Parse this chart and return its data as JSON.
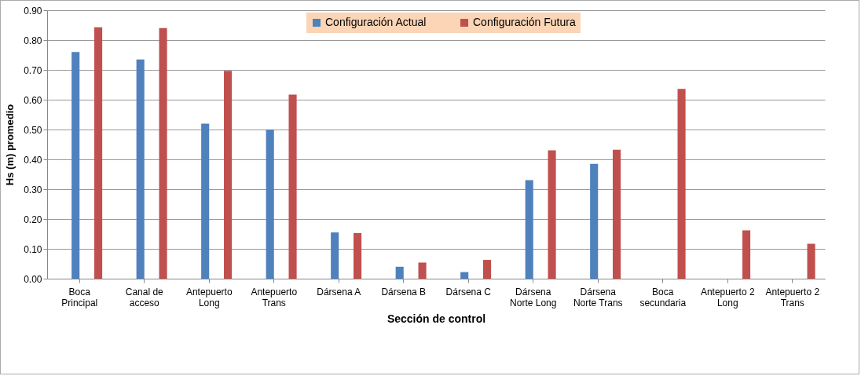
{
  "chart_data": {
    "type": "bar",
    "xlabel": "Sección de control",
    "ylabel": "Hs (m) promedio",
    "categories": [
      "Boca Principal",
      "Canal de acceso",
      "Antepuerto Long",
      "Antepuerto Trans",
      "Dársena A",
      "Dársena B",
      "Dársena C",
      "Dársena Norte Long",
      "Dársena Norte Trans",
      "Boca secundaria",
      "Antepuerto 2 Long",
      "Antepuerto 2 Trans"
    ],
    "series": [
      {
        "name": "Configuración Actual",
        "color": "#4f81bd",
        "values": [
          0.76,
          0.735,
          0.52,
          0.5,
          0.155,
          0.04,
          0.022,
          0.33,
          0.385,
          null,
          null,
          null
        ]
      },
      {
        "name": "Configuración Futura",
        "color": "#c0504d",
        "values": [
          0.843,
          0.84,
          0.697,
          0.617,
          0.153,
          0.054,
          0.063,
          0.43,
          0.432,
          0.636,
          0.162,
          0.117
        ]
      }
    ],
    "ylim": [
      0,
      0.9
    ],
    "yticks": [
      {
        "value": 0,
        "label": "0.00"
      },
      {
        "value": 0.1,
        "label": "0.10"
      },
      {
        "value": 0.2,
        "label": "0.20"
      },
      {
        "value": 0.3,
        "label": "0.30"
      },
      {
        "value": 0.4,
        "label": "0.40"
      },
      {
        "value": 0.5,
        "label": "0.50"
      },
      {
        "value": 0.6,
        "label": "0.60"
      },
      {
        "value": 0.7,
        "label": "0.70"
      },
      {
        "value": 0.8,
        "label": "0.80"
      },
      {
        "value": 0.9,
        "label": "0.90"
      }
    ],
    "grid": "y",
    "legend": "top"
  }
}
